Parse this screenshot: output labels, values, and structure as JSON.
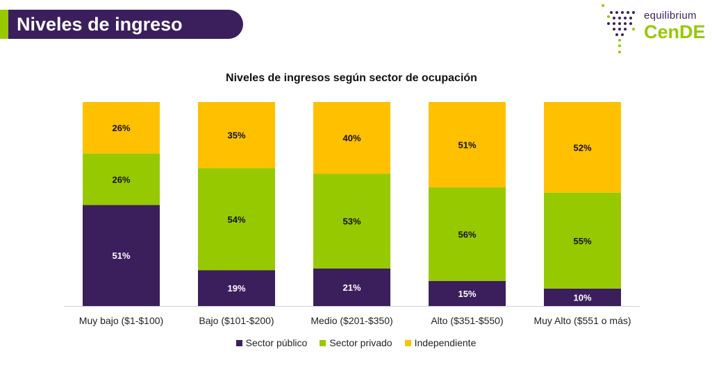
{
  "header": {
    "title": "Niveles de ingreso"
  },
  "logo": {
    "top_text": "equilibrium",
    "main_text": "CenDE"
  },
  "colors": {
    "header_bg": "#3b1f5c",
    "accent": "#97c900",
    "publico": "#3b1f5c",
    "privado": "#97c900",
    "independiente": "#ffc000"
  },
  "chart_data": {
    "type": "bar",
    "stacked": true,
    "title": "Niveles de ingresos según sector de ocupación",
    "categories": [
      "Muy bajo ($1-$100)",
      "Bajo ($101-$200)",
      "Medio ($201-$350)",
      "Alto ($351-$550)",
      "Muy Alto ($551 o más)"
    ],
    "series": [
      {
        "name": "Sector público",
        "values": [
          51,
          19,
          21,
          15,
          10
        ],
        "labels": [
          "51%",
          "19%",
          "21%",
          "15%",
          "10%"
        ]
      },
      {
        "name": "Sector privado",
        "values": [
          26,
          54,
          53,
          56,
          55
        ],
        "labels": [
          "26%",
          "54%",
          "53%",
          "56%",
          "55%"
        ]
      },
      {
        "name": "Independiente",
        "values": [
          26,
          35,
          40,
          51,
          52
        ],
        "labels": [
          "26%",
          "35%",
          "40%",
          "51%",
          "52%"
        ]
      }
    ],
    "legend_position": "bottom",
    "xlabel": "",
    "ylabel": ""
  }
}
